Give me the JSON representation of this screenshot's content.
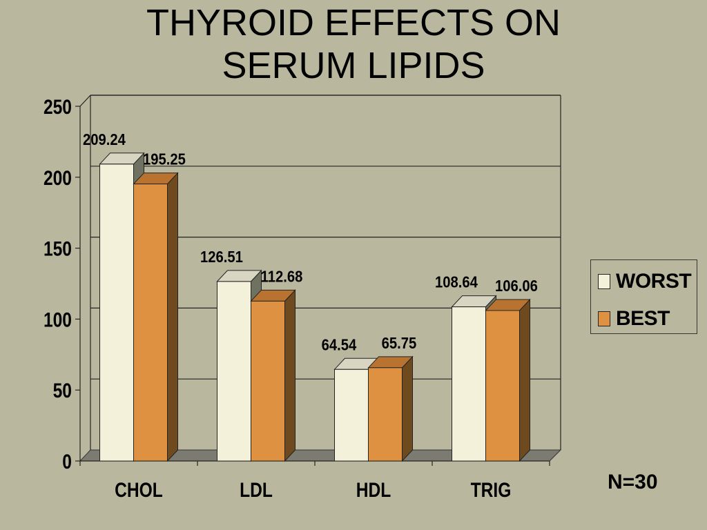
{
  "title_lines": [
    "THYROID EFFECTS ON",
    "SERUM LIPIDS"
  ],
  "note": "N=30",
  "colors": {
    "background": "#b9b89f",
    "worst_front": "#f4f1db",
    "worst_side": "#6f7161",
    "worst_top": "#d8d6c2",
    "best_front": "#de9140",
    "best_side": "#6e4a1e",
    "best_top": "#b97330",
    "floor": "#7c7b72",
    "grid": "#222222"
  },
  "legend": [
    {
      "label": "WORST",
      "color": "#f4f1db"
    },
    {
      "label": "BEST",
      "color": "#de9140"
    }
  ],
  "chart_data": {
    "type": "bar",
    "title": "THYROID EFFECTS ON SERUM LIPIDS",
    "categories": [
      "CHOL",
      "LDL",
      "HDL",
      "TRIG"
    ],
    "series": [
      {
        "name": "WORST",
        "values": [
          209.24,
          126.51,
          64.54,
          108.64
        ],
        "labels": [
          "209.24",
          "126.51",
          "64.54",
          "108.64"
        ]
      },
      {
        "name": "BEST",
        "values": [
          195.25,
          112.68,
          65.75,
          106.06
        ],
        "labels": [
          "195.25",
          "112.68",
          "65.75",
          "106.06"
        ]
      }
    ],
    "yticks": [
      "0",
      "50",
      "100",
      "150",
      "200",
      "250"
    ],
    "ylim": [
      0,
      250
    ],
    "grid": true,
    "legend_position": "right"
  }
}
